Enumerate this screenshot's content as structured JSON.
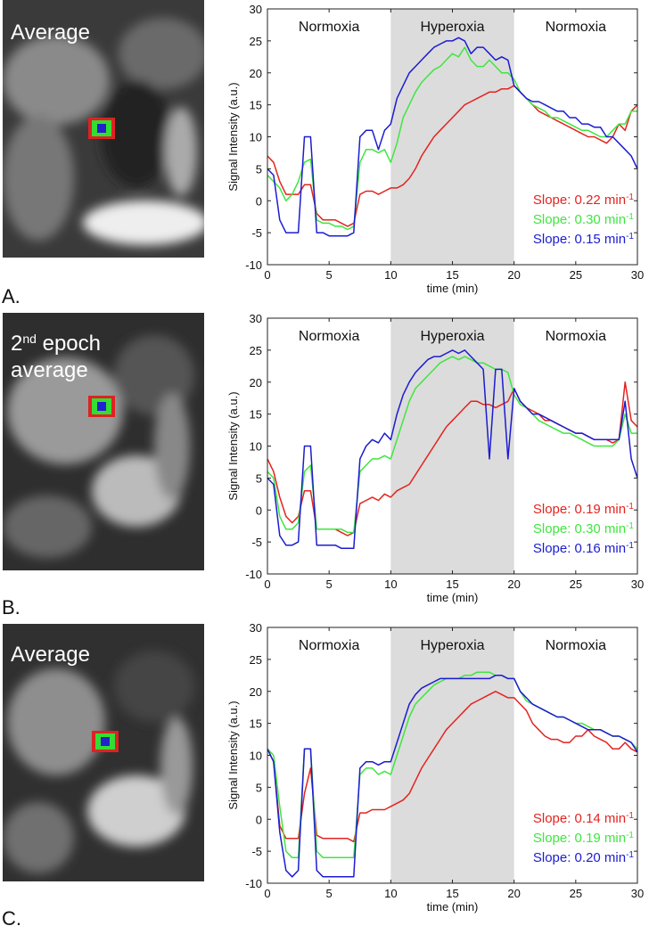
{
  "panels": [
    {
      "label": "A.",
      "image_label": {
        "lines": [
          [
            {
              "text": "Average"
            }
          ]
        ]
      }
    },
    {
      "label": "B.",
      "image_label": {
        "lines": [
          [
            {
              "text": "2"
            },
            {
              "text": "nd",
              "sup": true
            },
            {
              "text": " epoch"
            }
          ],
          [
            {
              "text": "average"
            }
          ]
        ]
      }
    },
    {
      "label": "C.",
      "image_label": {
        "lines": [
          [
            {
              "text": "Average"
            }
          ]
        ]
      }
    }
  ],
  "chart_data": [
    {
      "type": "line",
      "xlabel": "time (min)",
      "ylabel": "Signal Intensity (a.u.)",
      "xlim": [
        0,
        30
      ],
      "xticks": [
        0,
        5,
        10,
        15,
        20,
        25,
        30
      ],
      "ylim": [
        -10,
        30
      ],
      "yticks": [
        -10,
        -5,
        0,
        5,
        10,
        15,
        20,
        25,
        30
      ],
      "regions": [
        {
          "label": "Normoxia",
          "start": 0,
          "end": 10,
          "shaded": false
        },
        {
          "label": "Hyperoxia",
          "start": 10,
          "end": 20,
          "shaded": true,
          "color": "#dcdcdc"
        },
        {
          "label": "Normoxia",
          "start": 20,
          "end": 30,
          "shaded": false
        }
      ],
      "x": [
        0,
        0.5,
        1,
        1.5,
        2,
        2.5,
        3,
        3.5,
        4,
        4.5,
        5,
        5.5,
        6,
        6.5,
        7,
        7.5,
        8,
        8.5,
        9,
        9.5,
        10,
        10.5,
        11,
        11.5,
        12,
        12.5,
        13,
        13.5,
        14,
        14.5,
        15,
        15.5,
        16,
        16.5,
        17,
        17.5,
        18,
        18.5,
        19,
        19.5,
        20,
        20.5,
        21,
        21.5,
        22,
        22.5,
        23,
        23.5,
        24,
        24.5,
        25,
        25.5,
        26,
        26.5,
        27,
        27.5,
        28,
        28.5,
        29,
        29.5,
        30
      ],
      "series": [
        {
          "name": "red",
          "color": "#e4231f",
          "values": [
            7,
            6,
            3,
            1,
            1,
            1,
            2.5,
            2.5,
            -2,
            -3,
            -3,
            -3,
            -3.5,
            -4,
            -3.5,
            1,
            1.5,
            1.5,
            1,
            1.5,
            2,
            2,
            2.5,
            3.5,
            5,
            7,
            8.5,
            10,
            11,
            12,
            13,
            14,
            15,
            15.5,
            16,
            16.5,
            17,
            17,
            17.5,
            17.5,
            18,
            17,
            16,
            15,
            14,
            13.5,
            13,
            12.5,
            12,
            11.5,
            11,
            10.5,
            10,
            10,
            9.5,
            9,
            10,
            12,
            11,
            14,
            15
          ]
        },
        {
          "name": "green",
          "color": "#3fe63f",
          "values": [
            4,
            3,
            2,
            0,
            1,
            3,
            6,
            6.5,
            -3,
            -3.5,
            -3.5,
            -4,
            -4,
            -4.5,
            -4,
            6,
            8,
            8,
            7.5,
            8,
            6,
            9,
            13,
            15,
            17,
            18.5,
            19.5,
            20.5,
            21,
            22,
            23,
            22.5,
            24,
            22,
            21,
            21,
            22,
            21,
            20,
            20,
            19,
            17,
            16,
            15,
            14.5,
            14,
            13,
            13,
            12.5,
            12,
            11.5,
            11,
            11,
            10.5,
            10,
            10,
            11,
            12,
            12,
            14,
            14
          ]
        },
        {
          "name": "blue",
          "color": "#1c1cd0",
          "values": [
            5,
            4,
            -3,
            -5,
            -5,
            -5,
            10,
            10,
            -5,
            -5,
            -5.5,
            -5.5,
            -5.5,
            -5.5,
            -5,
            10,
            11,
            11,
            8,
            11,
            12,
            16,
            18,
            20,
            21,
            22,
            23,
            24,
            24.5,
            25,
            25,
            25.5,
            25,
            23,
            24,
            24,
            23,
            22,
            22.5,
            22,
            18,
            17,
            16,
            15.5,
            15.5,
            15,
            14.5,
            14,
            14,
            13,
            13,
            12,
            12,
            11.5,
            11.5,
            10,
            10,
            9,
            8,
            7,
            5
          ]
        }
      ],
      "annotations": [
        {
          "text": "Slope: 0.22 min",
          "sup": "-1",
          "color": "#e4231f"
        },
        {
          "text": "Slope: 0.30 min",
          "sup": "-1",
          "color": "#3fe63f"
        },
        {
          "text": "Slope: 0.15 min",
          "sup": "-1",
          "color": "#1c1cd0"
        }
      ]
    },
    {
      "type": "line",
      "xlabel": "time (min)",
      "ylabel": "Signal Intensity (a.u.)",
      "xlim": [
        0,
        30
      ],
      "xticks": [
        0,
        5,
        10,
        15,
        20,
        25,
        30
      ],
      "ylim": [
        -10,
        30
      ],
      "yticks": [
        -10,
        -5,
        0,
        5,
        10,
        15,
        20,
        25,
        30
      ],
      "regions": [
        {
          "label": "Normoxia",
          "start": 0,
          "end": 10,
          "shaded": false
        },
        {
          "label": "Hyperoxia",
          "start": 10,
          "end": 20,
          "shaded": true,
          "color": "#dcdcdc"
        },
        {
          "label": "Normoxia",
          "start": 20,
          "end": 30,
          "shaded": false
        }
      ],
      "x": [
        0,
        0.5,
        1,
        1.5,
        2,
        2.5,
        3,
        3.5,
        4,
        4.5,
        5,
        5.5,
        6,
        6.5,
        7,
        7.5,
        8,
        8.5,
        9,
        9.5,
        10,
        10.5,
        11,
        11.5,
        12,
        12.5,
        13,
        13.5,
        14,
        14.5,
        15,
        15.5,
        16,
        16.5,
        17,
        17.5,
        18,
        18.5,
        19,
        19.5,
        20,
        20.5,
        21,
        21.5,
        22,
        22.5,
        23,
        23.5,
        24,
        24.5,
        25,
        25.5,
        26,
        26.5,
        27,
        27.5,
        28,
        28.5,
        29,
        29.5,
        30
      ],
      "series": [
        {
          "name": "red",
          "color": "#e4231f",
          "values": [
            8,
            6,
            2,
            -1,
            -2,
            -1,
            3,
            3,
            -3,
            -3,
            -3,
            -3,
            -3.5,
            -4,
            -3.5,
            1,
            1.5,
            2,
            1.5,
            2.5,
            2,
            3,
            3.5,
            4,
            5.5,
            7,
            8.5,
            10,
            11.5,
            13,
            14,
            15,
            16,
            17,
            17,
            16.5,
            16.5,
            16,
            16.5,
            17,
            19,
            17,
            16,
            15.5,
            15,
            14,
            14,
            13.5,
            13,
            12.5,
            12,
            12,
            11.5,
            11,
            11,
            11,
            10.5,
            11,
            20,
            14,
            13
          ]
        },
        {
          "name": "green",
          "color": "#3fe63f",
          "values": [
            6,
            5,
            -1,
            -3,
            -3,
            -2,
            6,
            7,
            -3,
            -3,
            -3,
            -3,
            -3,
            -3.5,
            -3.5,
            6,
            7,
            8,
            8,
            8.5,
            8,
            11,
            14,
            17,
            19,
            20,
            21,
            22,
            23,
            23.5,
            24,
            23.5,
            24,
            23.5,
            23,
            23,
            22.5,
            22,
            22,
            21.5,
            18,
            16.5,
            16,
            15,
            14,
            13.5,
            13,
            12.5,
            12,
            12,
            11.5,
            11,
            10.5,
            10,
            10,
            10,
            10,
            11,
            15,
            12,
            12
          ]
        },
        {
          "name": "blue",
          "color": "#1c1cd0",
          "values": [
            5,
            4,
            -4,
            -5.5,
            -5.5,
            -5,
            10,
            10,
            -5.5,
            -5.5,
            -5.5,
            -5.5,
            -6,
            -6,
            -6,
            8,
            10,
            11,
            10.5,
            12,
            11,
            15,
            18,
            20,
            21.5,
            22.5,
            23.5,
            24,
            24,
            24.5,
            25,
            24.5,
            25,
            24,
            23,
            22,
            8,
            22,
            22,
            8,
            19,
            17,
            16,
            15,
            15,
            14.5,
            14,
            13.5,
            13,
            12.5,
            12,
            12,
            11.5,
            11,
            11,
            11,
            11,
            11,
            17,
            8,
            5
          ]
        }
      ],
      "annotations": [
        {
          "text": "Slope: 0.19 min",
          "sup": "-1",
          "color": "#e4231f"
        },
        {
          "text": "Slope: 0.30 min",
          "sup": "-1",
          "color": "#3fe63f"
        },
        {
          "text": "Slope: 0.16 min",
          "sup": "-1",
          "color": "#1c1cd0"
        }
      ]
    },
    {
      "type": "line",
      "xlabel": "time (min)",
      "ylabel": "Signal Intensity (a.u.)",
      "xlim": [
        0,
        30
      ],
      "xticks": [
        0,
        5,
        10,
        15,
        20,
        25,
        30
      ],
      "ylim": [
        -10,
        30
      ],
      "yticks": [
        -10,
        -5,
        0,
        5,
        10,
        15,
        20,
        25,
        30
      ],
      "regions": [
        {
          "label": "Normoxia",
          "start": 0,
          "end": 10,
          "shaded": false
        },
        {
          "label": "Hyperoxia",
          "start": 10,
          "end": 20,
          "shaded": true,
          "color": "#dcdcdc"
        },
        {
          "label": "Normoxia",
          "start": 20,
          "end": 30,
          "shaded": false
        }
      ],
      "x": [
        0,
        0.5,
        1,
        1.5,
        2,
        2.5,
        3,
        3.5,
        4,
        4.5,
        5,
        5.5,
        6,
        6.5,
        7,
        7.5,
        8,
        8.5,
        9,
        9.5,
        10,
        10.5,
        11,
        11.5,
        12,
        12.5,
        13,
        13.5,
        14,
        14.5,
        15,
        15.5,
        16,
        16.5,
        17,
        17.5,
        18,
        18.5,
        19,
        19.5,
        20,
        20.5,
        21,
        21.5,
        22,
        22.5,
        23,
        23.5,
        24,
        24.5,
        25,
        25.5,
        26,
        26.5,
        27,
        27.5,
        28,
        28.5,
        29,
        29.5,
        30
      ],
      "series": [
        {
          "name": "red",
          "color": "#e4231f",
          "values": [
            11,
            9,
            -1,
            -3,
            -3,
            -3,
            4,
            8,
            -2.5,
            -3,
            -3,
            -3,
            -3,
            -3,
            -3.5,
            1,
            1,
            1.5,
            1.5,
            1.5,
            2,
            2.5,
            3,
            4,
            6,
            8,
            9.5,
            11,
            12.5,
            14,
            15,
            16,
            17,
            18,
            18.5,
            19,
            19.5,
            20,
            19.5,
            19,
            19,
            18,
            17,
            15,
            14,
            13,
            12.5,
            12.5,
            12,
            12,
            13,
            13,
            14,
            13,
            12.5,
            12,
            11,
            11,
            12,
            11,
            10.5
          ]
        },
        {
          "name": "green",
          "color": "#3fe63f",
          "values": [
            11,
            10,
            2,
            -5,
            -6,
            -6,
            11,
            11,
            -5,
            -6,
            -6,
            -6,
            -6,
            -6,
            -6,
            7,
            8,
            8,
            7,
            7.5,
            7,
            10,
            13,
            16,
            18,
            19,
            20,
            21,
            21.5,
            22,
            22,
            22,
            22.5,
            22.5,
            23,
            23,
            23,
            22.5,
            22.5,
            22,
            22,
            20,
            18.5,
            18,
            17.5,
            17,
            16.5,
            16,
            16,
            15.5,
            15,
            15,
            14.5,
            14,
            14,
            13.5,
            13,
            13,
            12.5,
            12,
            11
          ]
        },
        {
          "name": "blue",
          "color": "#1c1cd0",
          "values": [
            11,
            9,
            -2,
            -8,
            -9,
            -8,
            11,
            11,
            -8,
            -9,
            -9,
            -9,
            -9,
            -9,
            -9,
            8,
            9,
            9,
            8.5,
            9,
            9,
            12,
            15,
            18,
            19.5,
            20.5,
            21,
            21.5,
            22,
            22,
            22,
            22,
            22,
            22,
            22,
            22,
            22,
            22.5,
            22.5,
            22,
            22,
            20,
            19,
            18,
            17.5,
            17,
            16.5,
            16,
            16,
            15.5,
            15,
            14.5,
            14,
            14,
            14,
            13.5,
            13,
            13,
            12.5,
            12,
            10.5
          ]
        }
      ],
      "annotations": [
        {
          "text": "Slope: 0.14 min",
          "sup": "-1",
          "color": "#e4231f"
        },
        {
          "text": "Slope: 0.19 min",
          "sup": "-1",
          "color": "#3fe63f"
        },
        {
          "text": "Slope: 0.20 min",
          "sup": "-1",
          "color": "#1c1cd0"
        }
      ]
    }
  ]
}
